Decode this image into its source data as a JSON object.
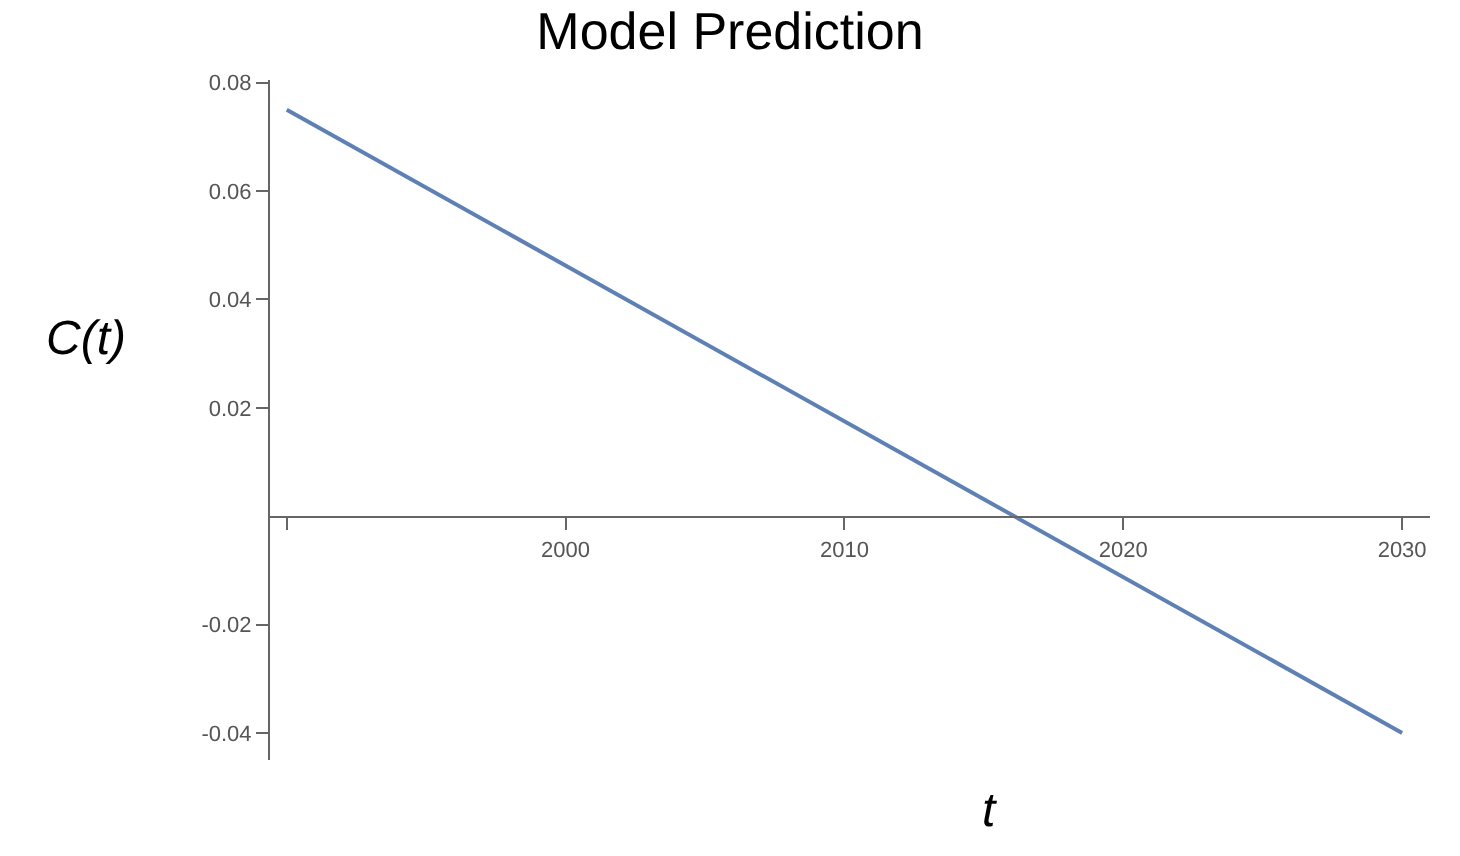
{
  "chart_data": {
    "type": "line",
    "title": "Model Prediction",
    "xlabel": "t",
    "ylabel": "C(t)",
    "x": [
      1990,
      2030
    ],
    "series": [
      {
        "color": "#5e81b5",
        "values": [
          0.075,
          -0.04
        ]
      }
    ],
    "xlim": [
      1989.4,
      2031
    ],
    "ylim": [
      -0.045,
      0.0805
    ],
    "xticks": [
      {
        "value": 1990,
        "label": null
      },
      2000,
      2010,
      2020,
      2030
    ],
    "yticks": [
      0.08,
      0.06,
      0.04,
      0.02,
      -0.02,
      -0.04
    ],
    "legend": false,
    "marker": "none",
    "line_style": "solid"
  }
}
